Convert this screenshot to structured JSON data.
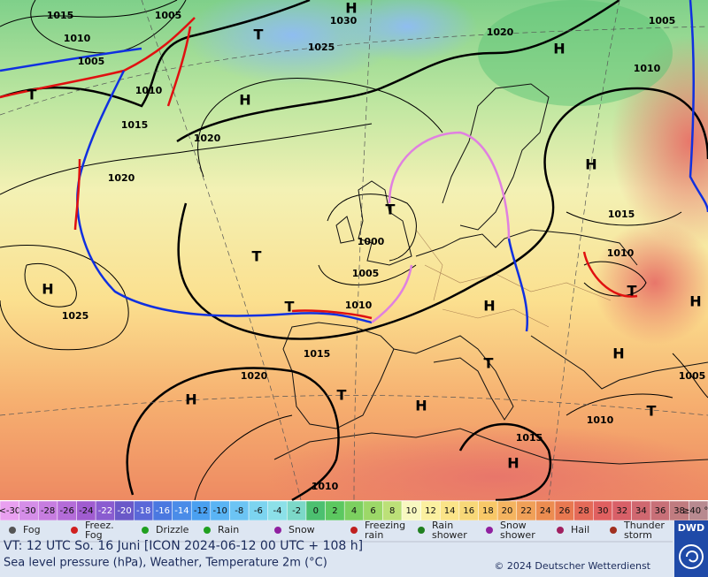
{
  "map": {
    "pressure_labels": [
      "1015",
      "1005",
      "1010",
      "1005",
      "1010",
      "1015",
      "1020",
      "1020",
      "1030",
      "1025",
      "1020",
      "1005",
      "1010",
      "1015",
      "1010",
      "1000",
      "1005",
      "1010",
      "1015",
      "1020",
      "1025",
      "1015",
      "1010",
      "1005",
      "1010"
    ],
    "centers": [
      "T",
      "H",
      "H",
      "H",
      "H",
      "T",
      "T",
      "H",
      "T",
      "H",
      "T",
      "H",
      "T",
      "H",
      "H",
      "T",
      "H",
      "T",
      "T",
      "H"
    ]
  },
  "scale": [
    "<-30",
    "-30",
    "-28",
    "-26",
    "-24",
    "-22",
    "-20",
    "-18",
    "-16",
    "-14",
    "-12",
    "-10",
    "-8",
    "-6",
    "-4",
    "-2",
    "0",
    "2",
    "4",
    "6",
    "8",
    "10",
    "12",
    "14",
    "16",
    "18",
    "20",
    "22",
    "24",
    "26",
    "28",
    "30",
    "32",
    "34",
    "36",
    "38",
    "≥40 °C"
  ],
  "legend": [
    "Fog",
    "Freez. Fog",
    "Drizzle",
    "Rain",
    "Snow",
    "Freezing rain",
    "Rain shower",
    "Snow shower",
    "Hail",
    "Thunder storm"
  ],
  "footer": {
    "valid_time": "VT: 12 UTC So.  16 Juni [ICON 2024-06-12  00 UTC + 108 h]",
    "description": "Sea level pressure (hPa), Weather, Temperature 2m (°C)",
    "copyright": "© 2024 Deutscher Wetterdienst",
    "logo": "DWD"
  }
}
